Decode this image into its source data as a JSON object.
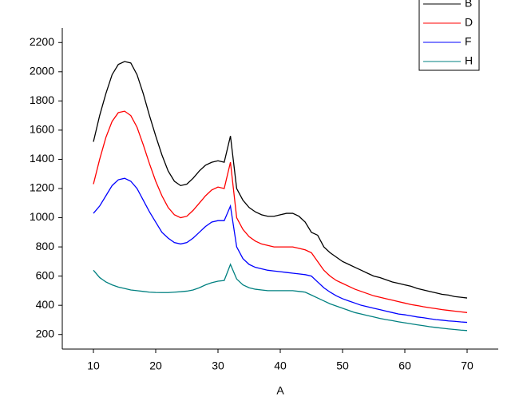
{
  "chart_data": {
    "type": "line",
    "x_label": "A",
    "x": [
      10,
      11,
      12,
      13,
      14,
      15,
      16,
      17,
      18,
      19,
      20,
      21,
      22,
      23,
      24,
      25,
      26,
      27,
      28,
      29,
      30,
      31,
      32,
      33,
      34,
      35,
      36,
      37,
      38,
      39,
      40,
      41,
      42,
      43,
      44,
      45,
      46,
      47,
      48,
      49,
      50,
      51,
      52,
      53,
      54,
      55,
      56,
      57,
      58,
      59,
      60,
      61,
      62,
      63,
      64,
      65,
      66,
      67,
      68,
      69,
      70
    ],
    "series": [
      {
        "name": "B",
        "color": "#000000",
        "values": [
          1520,
          1700,
          1850,
          1980,
          2050,
          2070,
          2060,
          1980,
          1850,
          1700,
          1560,
          1430,
          1320,
          1250,
          1220,
          1230,
          1270,
          1320,
          1360,
          1380,
          1390,
          1380,
          1560,
          1200,
          1120,
          1070,
          1040,
          1020,
          1010,
          1010,
          1020,
          1030,
          1030,
          1010,
          970,
          900,
          880,
          800,
          760,
          730,
          700,
          680,
          660,
          640,
          620,
          600,
          590,
          575,
          560,
          550,
          540,
          530,
          515,
          505,
          495,
          485,
          475,
          470,
          460,
          455,
          450
        ]
      },
      {
        "name": "D",
        "color": "#ff0000",
        "values": [
          1230,
          1400,
          1550,
          1660,
          1720,
          1730,
          1700,
          1620,
          1500,
          1370,
          1250,
          1150,
          1070,
          1020,
          1000,
          1010,
          1050,
          1100,
          1150,
          1190,
          1210,
          1200,
          1380,
          1000,
          920,
          870,
          840,
          820,
          810,
          800,
          800,
          800,
          800,
          790,
          780,
          760,
          700,
          640,
          600,
          570,
          550,
          530,
          510,
          495,
          480,
          465,
          455,
          445,
          435,
          425,
          415,
          405,
          398,
          390,
          383,
          377,
          370,
          365,
          360,
          355,
          350
        ]
      },
      {
        "name": "F",
        "color": "#0000ff",
        "values": [
          1030,
          1080,
          1150,
          1220,
          1260,
          1270,
          1250,
          1200,
          1120,
          1040,
          970,
          900,
          860,
          830,
          820,
          830,
          860,
          900,
          940,
          970,
          980,
          980,
          1080,
          800,
          720,
          680,
          660,
          650,
          640,
          635,
          630,
          625,
          620,
          615,
          610,
          600,
          560,
          520,
          490,
          465,
          445,
          430,
          415,
          400,
          390,
          380,
          370,
          360,
          350,
          340,
          335,
          328,
          320,
          315,
          308,
          302,
          298,
          293,
          290,
          286,
          283
        ]
      },
      {
        "name": "H",
        "color": "#008080",
        "values": [
          640,
          590,
          560,
          540,
          525,
          515,
          505,
          500,
          495,
          490,
          488,
          487,
          487,
          490,
          493,
          497,
          505,
          520,
          540,
          555,
          565,
          570,
          680,
          580,
          540,
          520,
          510,
          505,
          500,
          500,
          500,
          500,
          500,
          495,
          490,
          470,
          450,
          430,
          410,
          395,
          380,
          365,
          350,
          340,
          330,
          320,
          310,
          302,
          295,
          287,
          280,
          273,
          266,
          260,
          253,
          248,
          243,
          238,
          234,
          230,
          227
        ]
      }
    ],
    "xlim": [
      5,
      75
    ],
    "ylim": [
      100,
      2300
    ],
    "xticks": [
      10,
      20,
      30,
      40,
      50,
      60,
      70
    ],
    "yticks": [
      200,
      400,
      600,
      800,
      1000,
      1200,
      1400,
      1600,
      1800,
      2000,
      2200
    ]
  }
}
